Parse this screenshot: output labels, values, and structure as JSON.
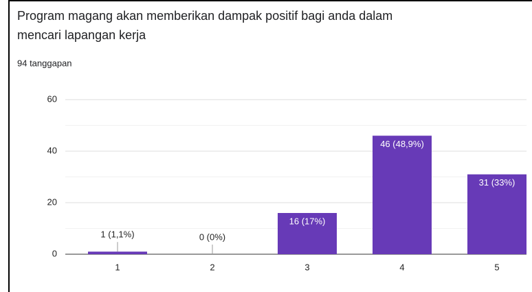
{
  "chart_data": {
    "type": "bar",
    "title_lines": [
      "Program magang akan memberikan dampak positif bagi anda dalam",
      "mencari lapangan kerja"
    ],
    "subtitle": "94 tanggapan",
    "categories": [
      "1",
      "2",
      "3",
      "4",
      "5"
    ],
    "values": [
      1,
      0,
      16,
      46,
      31
    ],
    "value_labels": [
      "1 (1,1%)",
      "0 (0%)",
      "16 (17%)",
      "46 (48,9%)",
      "31 (33%)"
    ],
    "color": "#673ab7",
    "ylim": [
      0,
      60
    ],
    "yticks": [
      0,
      20,
      40,
      60
    ],
    "minor_yticks": [
      10,
      30,
      50
    ],
    "grid": true
  }
}
